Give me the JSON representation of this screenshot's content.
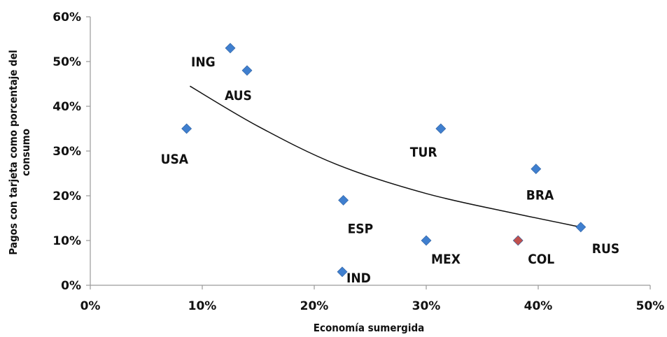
{
  "chart_data": {
    "type": "scatter",
    "title": "",
    "xlabel": "Economía sumergida",
    "ylabel_lines": [
      "Pagos con tarjeta como porcentaje del",
      "consumo"
    ],
    "xlim": [
      0,
      50
    ],
    "ylim": [
      0,
      60
    ],
    "x_ticks": [
      "0%",
      "10%",
      "20%",
      "30%",
      "40%",
      "50%"
    ],
    "y_ticks": [
      "0%",
      "10%",
      "20%",
      "30%",
      "40%",
      "50%",
      "60%"
    ],
    "grid": false,
    "points": [
      {
        "label": "ING",
        "x": 12.5,
        "y": 53,
        "color": "#3f7fcf"
      },
      {
        "label": "AUS",
        "x": 14,
        "y": 48,
        "color": "#3f7fcf"
      },
      {
        "label": "USA",
        "x": 8.6,
        "y": 35,
        "color": "#3f7fcf"
      },
      {
        "label": "TUR",
        "x": 31.3,
        "y": 35,
        "color": "#3f7fcf"
      },
      {
        "label": "BRA",
        "x": 39.8,
        "y": 26,
        "color": "#3f7fcf"
      },
      {
        "label": "ESP",
        "x": 22.6,
        "y": 19,
        "color": "#3f7fcf"
      },
      {
        "label": "MEX",
        "x": 30,
        "y": 10,
        "color": "#3f7fcf"
      },
      {
        "label": "COL",
        "x": 38.2,
        "y": 10,
        "color": "#c0504d"
      },
      {
        "label": "RUS",
        "x": 43.8,
        "y": 13,
        "color": "#3f7fcf"
      },
      {
        "label": "IND",
        "x": 22.5,
        "y": 3,
        "color": "#3f7fcf"
      }
    ],
    "trendline": {
      "type": "power",
      "points": [
        [
          8.9,
          44.5
        ],
        [
          15,
          35.5
        ],
        [
          22,
          27
        ],
        [
          30,
          20.5
        ],
        [
          38,
          16
        ],
        [
          43.8,
          13
        ]
      ]
    }
  }
}
